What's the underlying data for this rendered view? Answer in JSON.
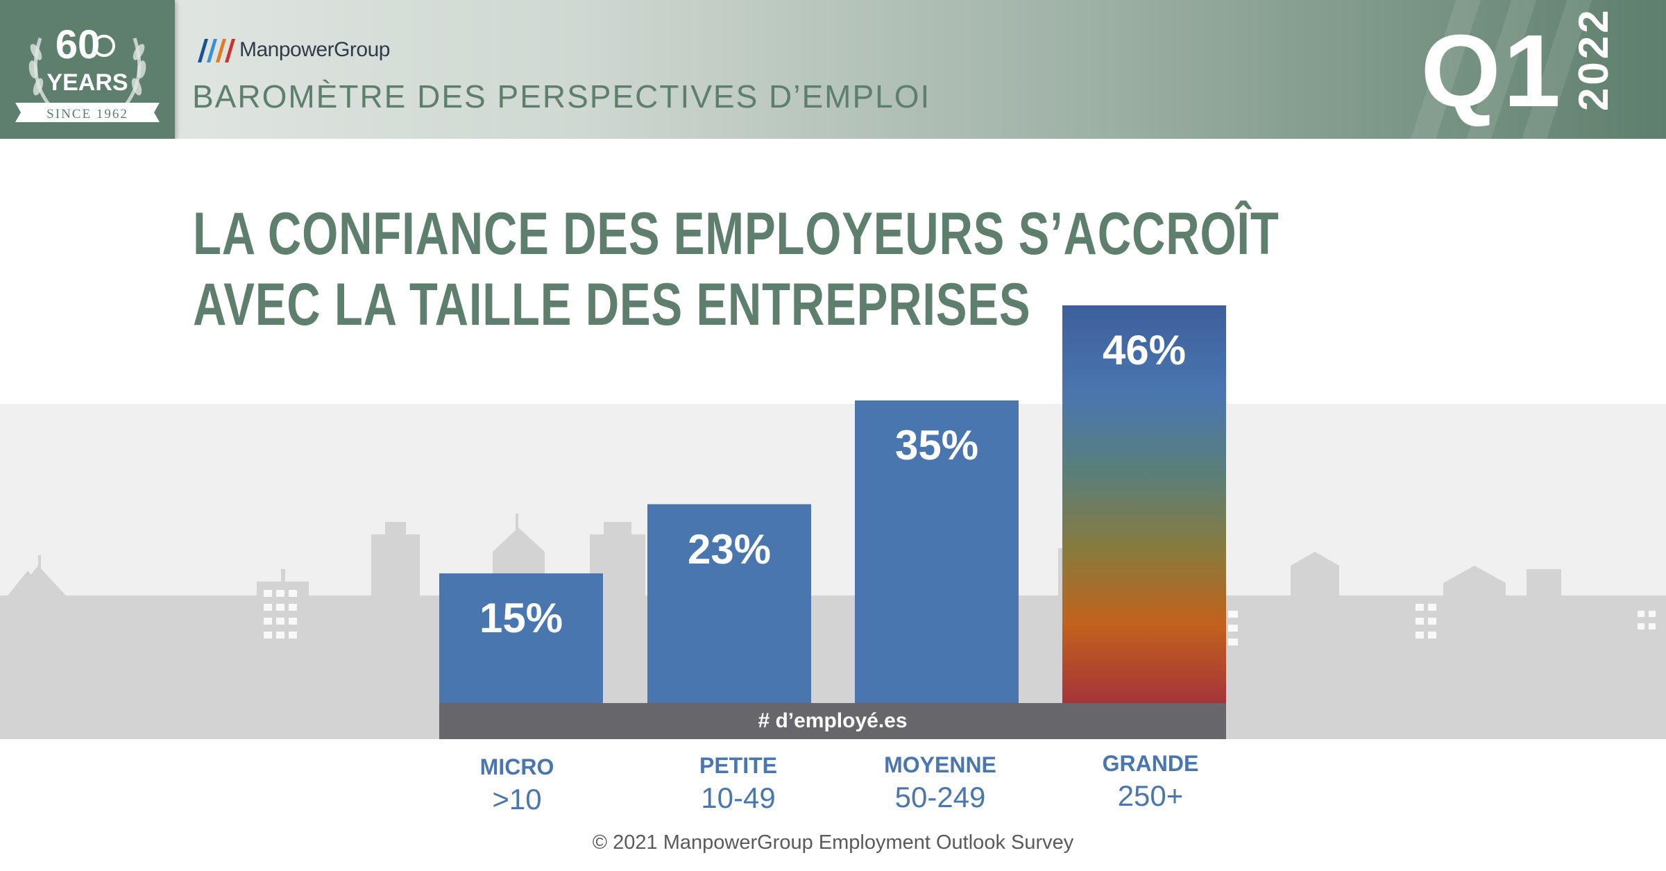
{
  "header": {
    "badge_number": "60",
    "badge_years": "YEARS",
    "badge_since": "SINCE 1962",
    "brand": "ManpowerGroup",
    "subtitle": "BAROMÈTRE DES PERSPECTIVES D’EMPLOI",
    "quarter": "Q1",
    "year": "2022"
  },
  "colors": {
    "header_green": "#5e7f6d",
    "bar_blue": "#4a76b0",
    "grand_top": "#3d5f9a",
    "grand_bottom": "#a6343a",
    "axis_band": "#67676b",
    "skyline": "#d3d3d3"
  },
  "title_lines": [
    "LA CONFIANCE DES EMPLOYEURS S’ACCROÎT",
    "AVEC LA TAILLE DES ENTREPRISES"
  ],
  "chart_data": {
    "type": "bar",
    "title": "LA CONFIANCE DES EMPLOYEURS S’ACCROÎT AVEC LA TAILLE DES ENTREPRISES",
    "xlabel": "# d’employé.es",
    "ylabel": "",
    "ylim": [
      0,
      46
    ],
    "categories": [
      "MICRO",
      "PETITE",
      "MOYENNE",
      "GRANDE"
    ],
    "ranges": [
      ">10",
      "10-49",
      "50-249",
      "250+"
    ],
    "values": [
      15,
      23,
      35,
      46
    ],
    "data_labels": [
      "15%",
      "23%",
      "35%",
      "46%"
    ]
  },
  "footer": "© 2021 ManpowerGroup Employment Outlook Survey"
}
